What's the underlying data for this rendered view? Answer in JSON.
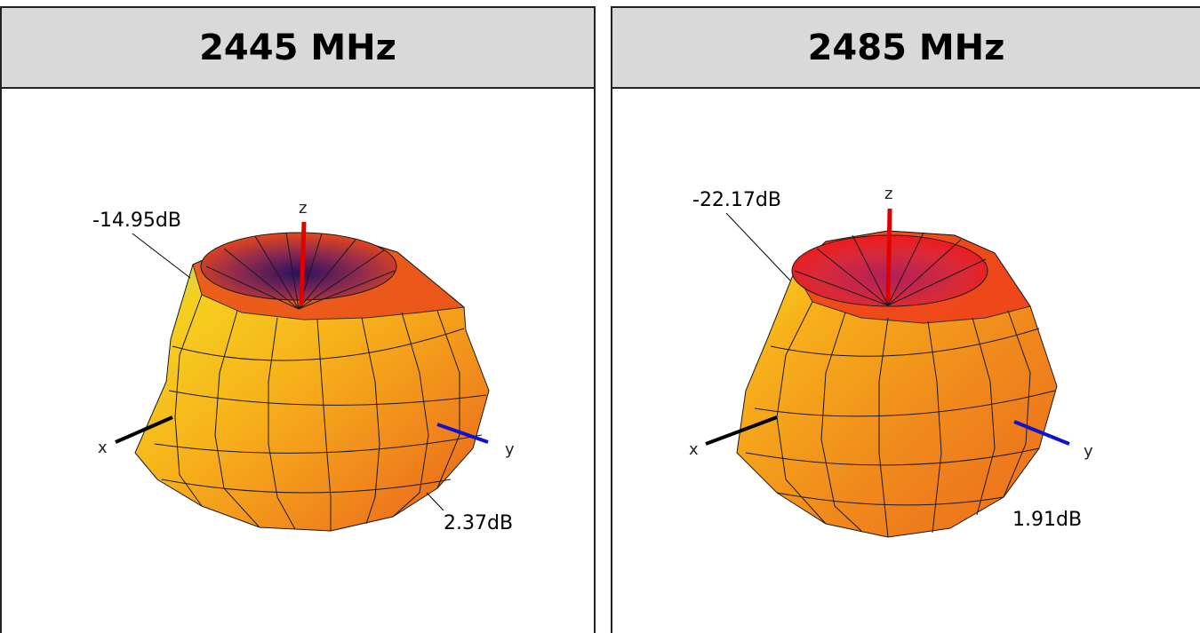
{
  "panels": [
    {
      "header": "2445 MHz",
      "min_label": "-14.95dB",
      "max_label": "2.37dB",
      "axes": {
        "x": "x",
        "y": "y",
        "z": "z"
      }
    },
    {
      "header": "2485 MHz",
      "min_label": "-22.17dB",
      "max_label": "1.91dB",
      "axes": {
        "x": "x",
        "y": "y",
        "z": "z"
      }
    }
  ],
  "colors": {
    "header_bg": "#d9d9d9",
    "pattern_orange": "#f08a1c",
    "pattern_red": "#e8261a",
    "pattern_yellow": "#f6c313",
    "axis_z": "#e00000",
    "axis_y": "#1010d0",
    "axis_x": "#000000"
  }
}
